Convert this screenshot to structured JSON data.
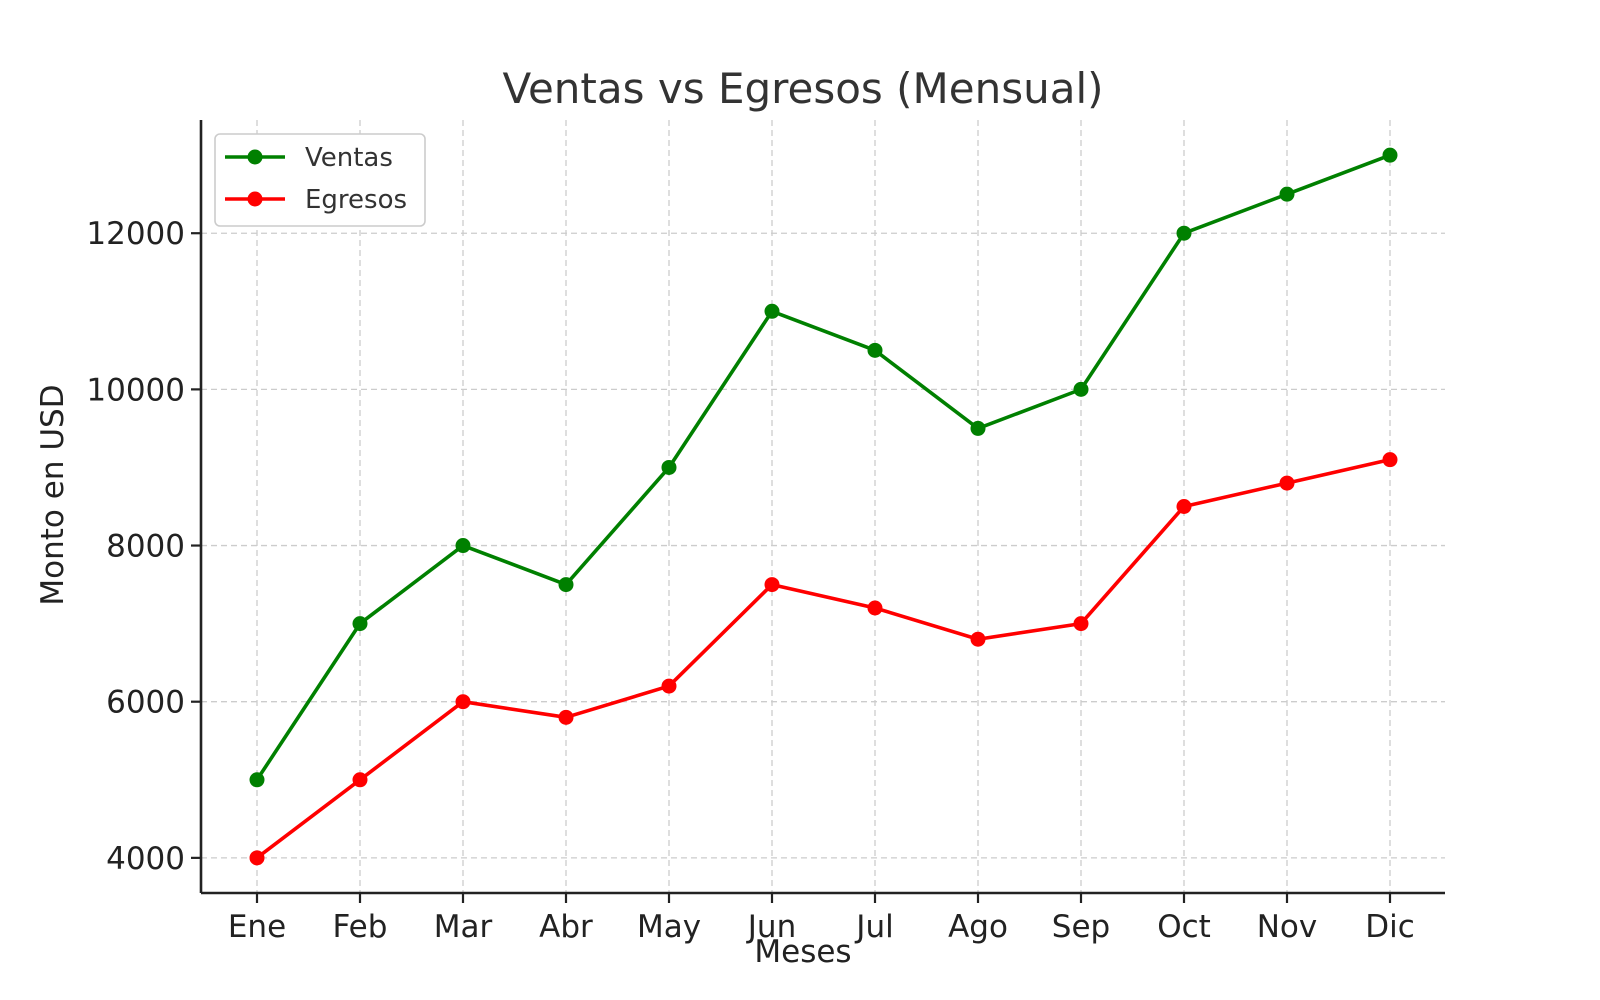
{
  "chart_data": {
    "type": "line",
    "title": "Ventas vs Egresos (Mensual)",
    "xlabel": "Meses",
    "ylabel": "Monto en USD",
    "categories": [
      "Ene",
      "Feb",
      "Mar",
      "Abr",
      "May",
      "Jun",
      "Jul",
      "Ago",
      "Sep",
      "Oct",
      "Nov",
      "Dic"
    ],
    "series": [
      {
        "name": "Ventas",
        "color": "#008000",
        "values": [
          5000,
          7000,
          8000,
          7500,
          9000,
          11000,
          10500,
          9500,
          10000,
          12000,
          12500,
          13000
        ]
      },
      {
        "name": "Egresos",
        "color": "#ff0000",
        "values": [
          4000,
          5000,
          6000,
          5800,
          6200,
          7500,
          7200,
          6800,
          7000,
          8500,
          8800,
          9100
        ]
      }
    ],
    "yticks": [
      4000,
      6000,
      8000,
      10000,
      12000
    ],
    "ylim": [
      3550,
      13450
    ],
    "grid": true,
    "legend_position": "top-left",
    "marker": "circle"
  }
}
